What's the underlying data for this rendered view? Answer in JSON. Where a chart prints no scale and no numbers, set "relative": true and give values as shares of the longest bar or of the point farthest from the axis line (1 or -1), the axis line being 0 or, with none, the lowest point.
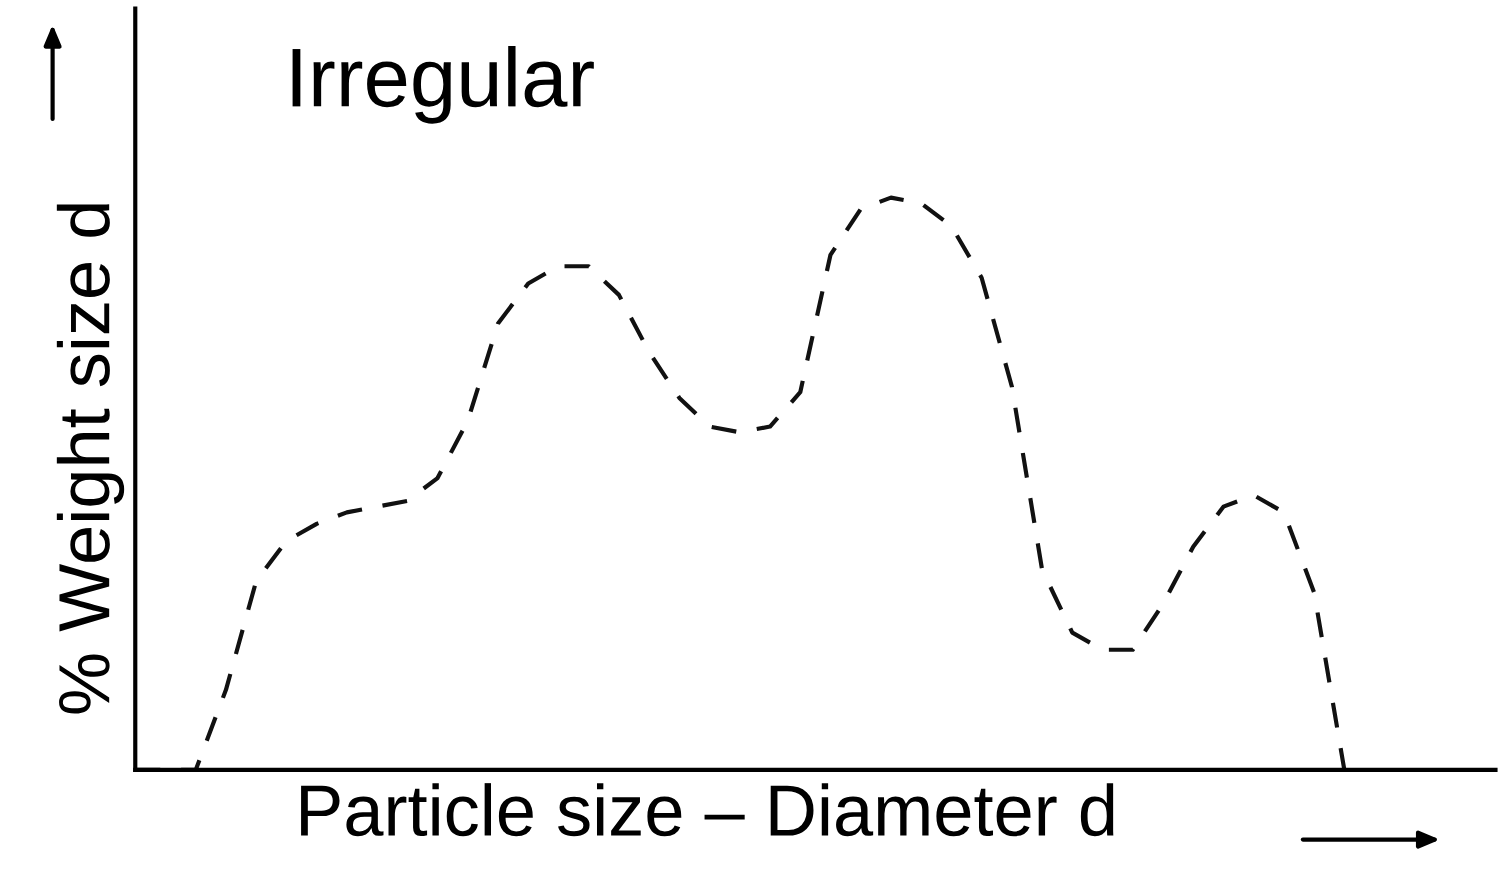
{
  "chart_data": {
    "type": "line",
    "title": "Irregular",
    "xlabel": "Particle size – Diameter d",
    "ylabel": "% Weight size d",
    "relative": true,
    "categories": [
      null,
      null,
      null,
      null,
      null,
      null,
      null,
      null,
      null,
      null,
      null,
      null,
      null,
      null,
      null,
      null,
      null,
      null,
      null,
      null,
      null,
      null,
      null,
      null,
      null,
      null,
      null,
      null,
      null,
      null,
      null,
      null,
      null,
      null,
      null,
      null,
      null,
      null,
      null,
      null,
      null,
      null,
      null,
      null,
      null,
      null
    ],
    "series": [
      {
        "color": "#111111",
        "values": [
          0,
          0,
          0,
          0.14,
          0.33,
          0.4,
          0.43,
          0.45,
          0.46,
          0.47,
          0.51,
          0.61,
          0.78,
          0.85,
          0.88,
          0.88,
          0.83,
          0.73,
          0.65,
          0.6,
          0.59,
          0.6,
          0.66,
          0.9,
          0.98,
          1,
          0.99,
          0.95,
          0.86,
          0.67,
          0.35,
          0.24,
          0.21,
          0.21,
          0.29,
          0.39,
          0.46,
          0.48,
          0.45,
          0.31,
          0,
          null,
          null,
          null,
          null,
          null
        ]
      }
    ],
    "line_style": "dashed",
    "grid": false,
    "legend": false
  }
}
